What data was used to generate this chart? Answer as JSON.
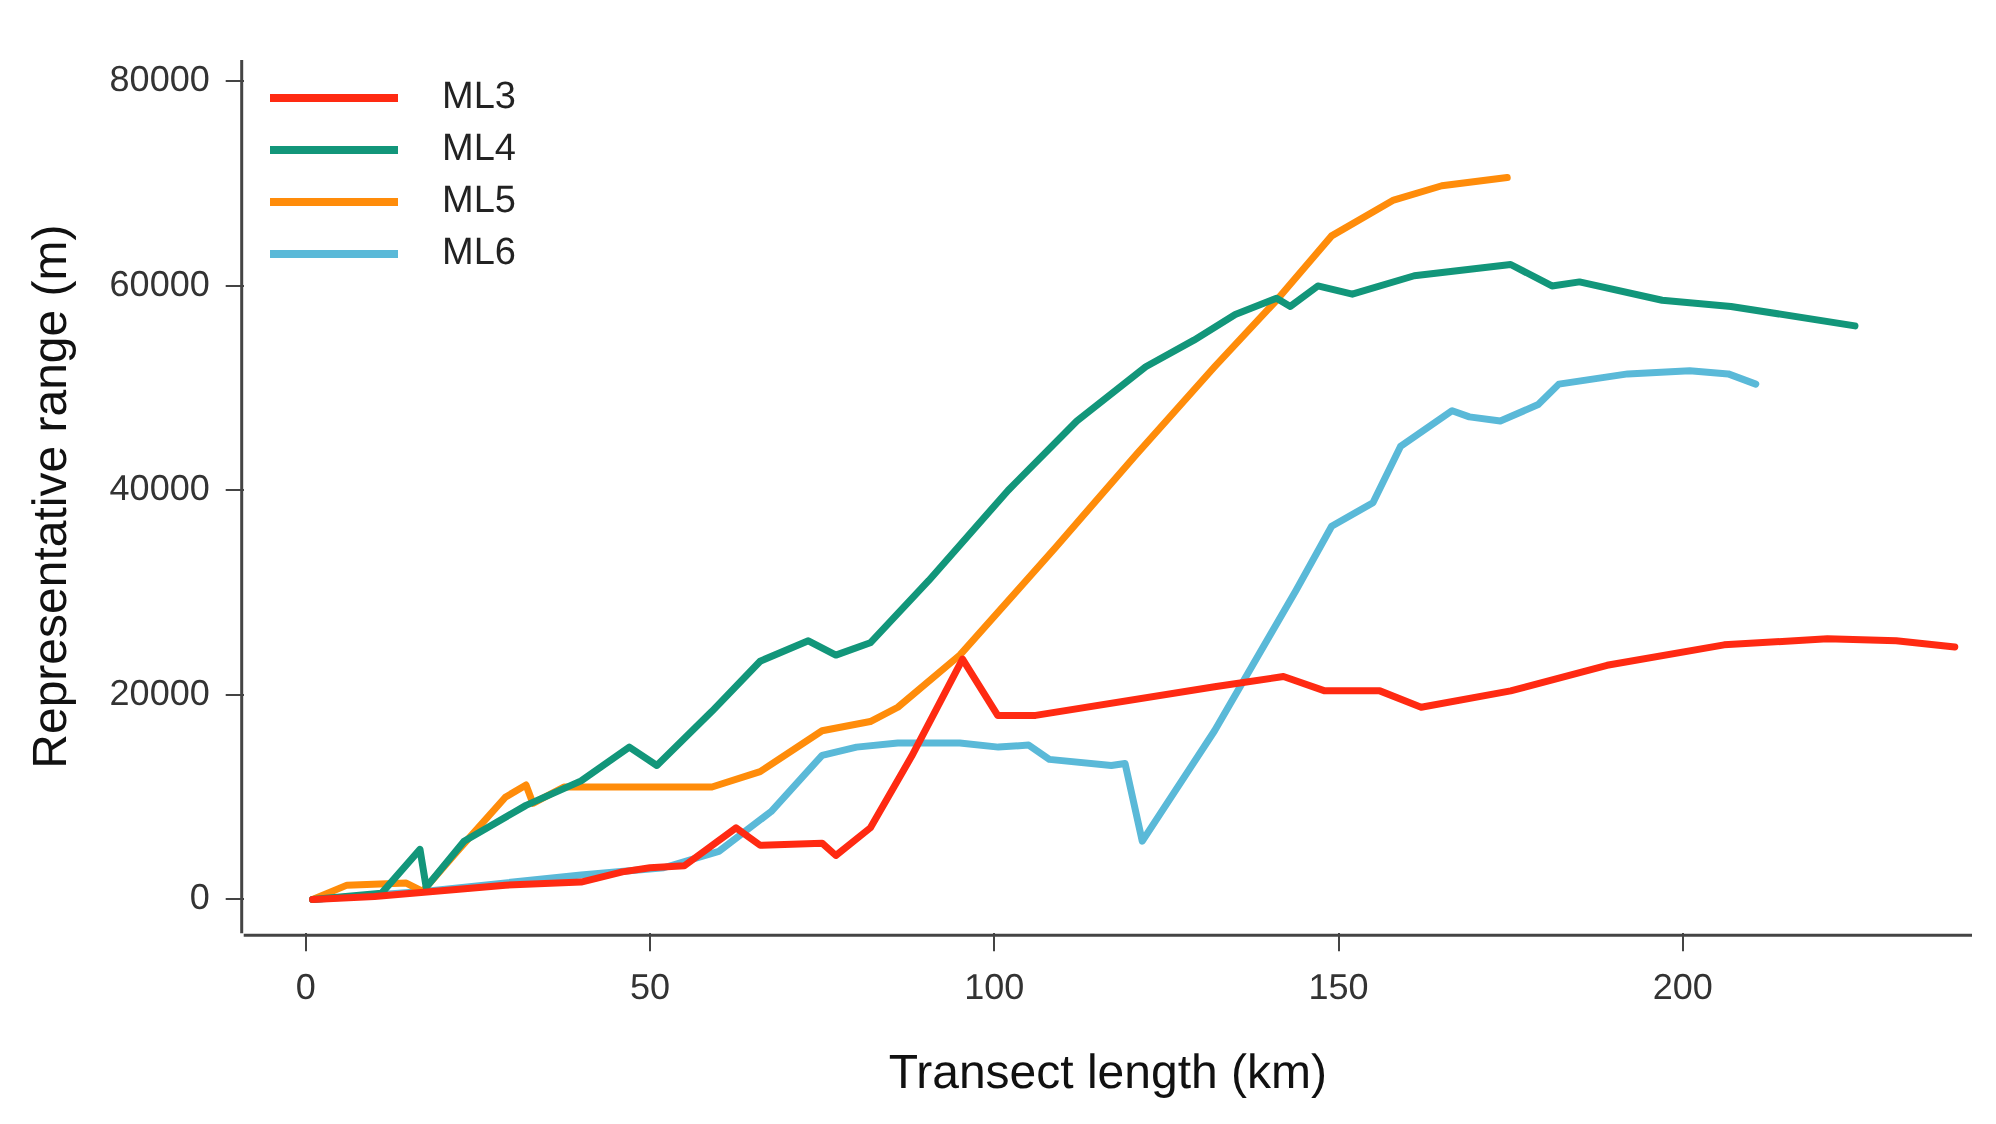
{
  "chart_data": {
    "type": "line",
    "xlabel": "Transect length (km)",
    "ylabel": "Representative range (m)",
    "xlim": [
      -9,
      242
    ],
    "ylim": [
      -3300,
      82100
    ],
    "xticks": [
      0,
      50,
      100,
      150,
      200
    ],
    "yticks": [
      0,
      20000,
      40000,
      60000,
      80000
    ],
    "grid": false,
    "legend": "top left",
    "marker": "none",
    "line_style": "solid",
    "series": [
      {
        "name": "ML3",
        "color": "#ff2a12",
        "x": [
          1,
          10,
          29,
          40,
          46,
          50,
          55,
          62.5,
          66,
          75,
          77,
          82,
          88,
          95.4,
          100.5,
          106,
          132,
          142,
          148,
          156,
          162,
          175,
          189,
          206,
          221,
          231,
          239.5
        ],
        "values": [
          0,
          300,
          1400,
          1700,
          2700,
          3100,
          3300,
          7000,
          5300,
          5500,
          4300,
          7000,
          14000,
          23500,
          18000,
          18000,
          20800,
          21800,
          20400,
          20400,
          18800,
          20400,
          22900,
          24900,
          25500,
          25300,
          24700
        ]
      },
      {
        "name": "ML4",
        "color": "#12967a",
        "x": [
          1,
          11,
          16.6,
          17.5,
          23,
          32,
          40,
          47,
          51,
          59,
          66,
          73,
          77,
          82,
          90.5,
          102,
          112,
          122,
          129,
          135,
          141,
          143,
          147,
          152,
          161,
          175,
          181,
          185,
          197,
          207,
          225
        ],
        "values": [
          0,
          600,
          4900,
          1200,
          5700,
          9200,
          11600,
          14900,
          13100,
          18400,
          23300,
          25300,
          23900,
          25100,
          31200,
          40000,
          46800,
          52100,
          54700,
          57200,
          58800,
          58000,
          60000,
          59200,
          61000,
          62100,
          60000,
          60400,
          58600,
          58000,
          56100
        ]
      },
      {
        "name": "ML5",
        "color": "#ff8c0a",
        "x": [
          1,
          6,
          14.6,
          17,
          22,
          29,
          32,
          33,
          37.5,
          59,
          66,
          75,
          82,
          86,
          95,
          109,
          120.6,
          132,
          141,
          149,
          158,
          165,
          174.5
        ],
        "values": [
          0,
          1400,
          1600,
          800,
          4700,
          10000,
          11200,
          9400,
          11000,
          11000,
          12500,
          16500,
          17400,
          18800,
          23900,
          34500,
          43500,
          52100,
          58600,
          64900,
          68400,
          69800,
          70600
        ]
      },
      {
        "name": "ML6",
        "color": "#5ab9d8",
        "x": [
          1,
          17.5,
          40,
          52,
          60,
          67.6,
          75,
          80,
          86,
          95,
          100.6,
          105,
          108,
          117,
          119,
          121.5,
          132,
          143.8,
          149,
          155,
          159,
          166.5,
          169,
          173.5,
          179,
          182,
          192,
          201,
          206.6,
          210.6
        ],
        "values": [
          0,
          800,
          2400,
          3100,
          4700,
          8600,
          14100,
          14900,
          15300,
          15300,
          14900,
          15100,
          13700,
          13100,
          13300,
          5700,
          16500,
          30200,
          36500,
          38800,
          44300,
          47800,
          47200,
          46800,
          48400,
          50400,
          51400,
          51700,
          51400,
          50400
        ]
      }
    ]
  }
}
